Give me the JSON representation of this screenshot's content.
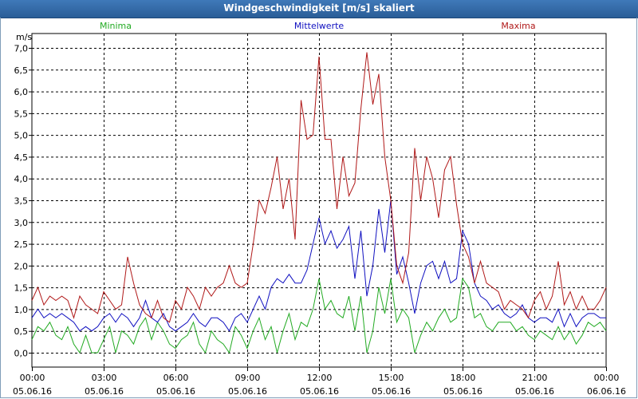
{
  "window": {
    "title": "Windgeschwindigkeit [m/s] skaliert"
  },
  "chart_data": {
    "type": "line",
    "title": "Windgeschwindigkeit [m/s] skaliert",
    "ylabel": "m/s",
    "ylim": [
      -0.2,
      7.1
    ],
    "y_ticks": [
      "0,0",
      "0,5",
      "1,0",
      "1,5",
      "2,0",
      "2,5",
      "3,0",
      "3,5",
      "4,0",
      "4,5",
      "5,0",
      "5,5",
      "6,0",
      "6,5",
      "7,0"
    ],
    "x_ticks": [
      {
        "time": "00:00",
        "date": "05.06.16"
      },
      {
        "time": "03:00",
        "date": "05.06.16"
      },
      {
        "time": "06:00",
        "date": "05.06.16"
      },
      {
        "time": "09:00",
        "date": "05.06.16"
      },
      {
        "time": "12:00",
        "date": "05.06.16"
      },
      {
        "time": "15:00",
        "date": "05.06.16"
      },
      {
        "time": "18:00",
        "date": "05.06.16"
      },
      {
        "time": "21:00",
        "date": "05.06.16"
      },
      {
        "time": "00:00",
        "date": "06.06.16"
      }
    ],
    "x_unit": "hours since 05.06.16 00:00",
    "grid": true,
    "series": [
      {
        "name": "Minima",
        "color": "#22aa22",
        "legend_position": "left",
        "x": [
          0,
          0.25,
          0.5,
          0.75,
          1,
          1.25,
          1.5,
          1.75,
          2,
          2.25,
          2.5,
          2.75,
          3,
          3.25,
          3.5,
          3.75,
          4,
          4.25,
          4.5,
          4.75,
          5,
          5.25,
          5.5,
          5.75,
          6,
          6.25,
          6.5,
          6.75,
          7,
          7.25,
          7.5,
          7.75,
          8,
          8.25,
          8.5,
          8.75,
          9,
          9.25,
          9.5,
          9.75,
          10,
          10.25,
          10.5,
          10.75,
          11,
          11.25,
          11.5,
          11.75,
          12,
          12.25,
          12.5,
          12.75,
          13,
          13.25,
          13.5,
          13.75,
          14,
          14.25,
          14.5,
          14.75,
          15,
          15.25,
          15.5,
          15.75,
          16,
          16.25,
          16.5,
          16.75,
          17,
          17.25,
          17.5,
          17.75,
          18,
          18.25,
          18.5,
          18.75,
          19,
          19.25,
          19.5,
          19.75,
          20,
          20.25,
          20.5,
          20.75,
          21,
          21.25,
          21.5,
          21.75,
          22,
          22.25,
          22.5,
          22.75,
          23,
          23.25,
          23.5,
          23.75,
          24
        ],
        "values": [
          0.3,
          0.6,
          0.5,
          0.7,
          0.4,
          0.3,
          0.6,
          0.2,
          0,
          0.4,
          0,
          0,
          0.3,
          0.6,
          0,
          0.5,
          0.4,
          0.2,
          0.6,
          0.8,
          0.3,
          0.7,
          0.5,
          0.2,
          0.1,
          0.3,
          0.4,
          0.7,
          0.2,
          0,
          0.5,
          0.3,
          0.2,
          0,
          0.6,
          0.4,
          0.1,
          0.5,
          0.8,
          0.3,
          0.6,
          0,
          0.5,
          0.9,
          0.3,
          0.7,
          0.6,
          1,
          1.7,
          1,
          1.2,
          0.9,
          0.8,
          1.3,
          0.5,
          1.3,
          0,
          0.5,
          1.5,
          0.9,
          1.7,
          0.7,
          1,
          0.8,
          0,
          0.4,
          0.7,
          0.5,
          0.8,
          1,
          0.7,
          0.8,
          1.7,
          1.5,
          0.8,
          0.9,
          0.6,
          0.5,
          0.7,
          0.7,
          0.7,
          0.5,
          0.6,
          0.4,
          0.3,
          0.5,
          0.4,
          0.3,
          0.6,
          0.3,
          0.5,
          0.2,
          0.4,
          0.7,
          0.6,
          0.7,
          0.5
        ],
        "x_step_hours": 0.25
      },
      {
        "name": "Mittelwerte",
        "color": "#1010c0",
        "legend_position": "center",
        "x": [
          0,
          0.25,
          0.5,
          0.75,
          1,
          1.25,
          1.5,
          1.75,
          2,
          2.25,
          2.5,
          2.75,
          3,
          3.25,
          3.5,
          3.75,
          4,
          4.25,
          4.5,
          4.75,
          5,
          5.25,
          5.5,
          5.75,
          6,
          6.25,
          6.5,
          6.75,
          7,
          7.25,
          7.5,
          7.75,
          8,
          8.25,
          8.5,
          8.75,
          9,
          9.25,
          9.5,
          9.75,
          10,
          10.25,
          10.5,
          10.75,
          11,
          11.25,
          11.5,
          11.75,
          12,
          12.25,
          12.5,
          12.75,
          13,
          13.25,
          13.5,
          13.75,
          14,
          14.25,
          14.5,
          14.75,
          15,
          15.25,
          15.5,
          15.75,
          16,
          16.25,
          16.5,
          16.75,
          17,
          17.25,
          17.5,
          17.75,
          18,
          18.25,
          18.5,
          18.75,
          19,
          19.25,
          19.5,
          19.75,
          20,
          20.25,
          20.5,
          20.75,
          21,
          21.25,
          21.5,
          21.75,
          22,
          22.25,
          22.5,
          22.75,
          23,
          23.25,
          23.5,
          23.75,
          24
        ],
        "values": [
          0.8,
          1.0,
          0.8,
          0.9,
          0.8,
          0.9,
          0.8,
          0.7,
          0.5,
          0.6,
          0.5,
          0.6,
          0.8,
          0.9,
          0.7,
          0.9,
          0.8,
          0.6,
          0.8,
          1.2,
          0.8,
          0.7,
          0.9,
          0.6,
          0.5,
          0.6,
          0.7,
          0.9,
          0.7,
          0.6,
          0.8,
          0.8,
          0.7,
          0.5,
          0.8,
          0.9,
          0.7,
          1.0,
          1.3,
          1.0,
          1.5,
          1.7,
          1.6,
          1.8,
          1.6,
          1.6,
          1.9,
          2.5,
          3.1,
          2.5,
          2.8,
          2.4,
          2.6,
          2.9,
          1.7,
          2.8,
          1.3,
          2.0,
          3.3,
          2.3,
          3.5,
          1.8,
          2.2,
          1.6,
          0.9,
          1.6,
          2.0,
          2.1,
          1.7,
          2.1,
          1.6,
          1.7,
          2.8,
          2.5,
          1.6,
          1.3,
          1.2,
          1.0,
          1.1,
          0.9,
          0.8,
          0.9,
          1.1,
          0.8,
          0.7,
          0.8,
          0.8,
          0.7,
          1.0,
          0.6,
          0.9,
          0.6,
          0.8,
          0.9,
          0.9,
          0.8,
          0.8
        ],
        "x_step_hours": 0.25
      },
      {
        "name": "Maxima",
        "color": "#b01818",
        "legend_position": "right",
        "x": [
          0,
          0.25,
          0.5,
          0.75,
          1,
          1.25,
          1.5,
          1.75,
          2,
          2.25,
          2.5,
          2.75,
          3,
          3.25,
          3.5,
          3.75,
          4,
          4.25,
          4.5,
          4.75,
          5,
          5.25,
          5.5,
          5.75,
          6,
          6.25,
          6.5,
          6.75,
          7,
          7.25,
          7.5,
          7.75,
          8,
          8.25,
          8.5,
          8.75,
          9,
          9.25,
          9.5,
          9.75,
          10,
          10.25,
          10.5,
          10.75,
          11,
          11.25,
          11.5,
          11.75,
          12,
          12.25,
          12.5,
          12.75,
          13,
          13.25,
          13.5,
          13.75,
          14,
          14.25,
          14.5,
          14.75,
          15,
          15.25,
          15.5,
          15.75,
          16,
          16.25,
          16.5,
          16.75,
          17,
          17.25,
          17.5,
          17.75,
          18,
          18.25,
          18.5,
          18.75,
          19,
          19.25,
          19.5,
          19.75,
          20,
          20.25,
          20.5,
          20.75,
          21,
          21.25,
          21.5,
          21.75,
          22,
          22.25,
          22.5,
          22.75,
          23,
          23.25,
          23.5,
          23.75,
          24
        ],
        "values": [
          1.2,
          1.5,
          1.1,
          1.3,
          1.2,
          1.3,
          1.2,
          0.8,
          1.3,
          1.1,
          1.0,
          0.9,
          1.4,
          1.2,
          1.0,
          1.1,
          2.2,
          1.6,
          1.1,
          0.9,
          0.8,
          1.2,
          0.8,
          0.7,
          1.2,
          1.0,
          1.5,
          1.3,
          1.0,
          1.5,
          1.3,
          1.5,
          1.6,
          2.0,
          1.6,
          1.5,
          1.6,
          2.5,
          3.5,
          3.2,
          3.8,
          4.5,
          3.3,
          4.0,
          2.6,
          5.8,
          4.9,
          5.0,
          6.8,
          4.9,
          4.9,
          3.3,
          4.5,
          3.6,
          3.9,
          5.6,
          6.9,
          5.7,
          6.4,
          4.5,
          3.5,
          2.0,
          1.6,
          2.3,
          4.7,
          3.5,
          4.5,
          4.0,
          3.1,
          4.2,
          4.5,
          3.4,
          2.5,
          2.2,
          1.6,
          2.1,
          1.6,
          1.5,
          1.4,
          1.0,
          1.2,
          1.1,
          1.0,
          0.8,
          1.2,
          1.4,
          1.0,
          1.3,
          2.1,
          1.1,
          1.4,
          1.0,
          1.3,
          1.0,
          1.0,
          1.2,
          1.5
        ],
        "x_step_hours": 0.25
      }
    ]
  }
}
